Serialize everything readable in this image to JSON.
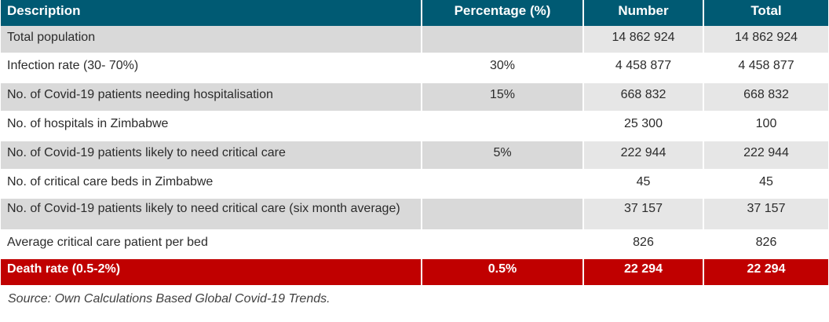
{
  "table": {
    "headers": [
      "Description",
      "Percentage (%)",
      "Number",
      "Total"
    ],
    "rows": [
      {
        "description": "Total population",
        "percentage": "",
        "number": "14 862 924",
        "total": "14 862 924"
      },
      {
        "description": "Infection rate (30- 70%)",
        "percentage": "30%",
        "number": "4 458 877",
        "total": "4 458 877"
      },
      {
        "description": "No. of Covid-19 patients needing hospitalisation",
        "percentage": "15%",
        "number": "668 832",
        "total": "668 832"
      },
      {
        "description": "No. of hospitals in Zimbabwe",
        "percentage": "",
        "number": "25 300",
        "total": "100"
      },
      {
        "description": "No. of Covid-19 patients likely to need critical care",
        "percentage": "5%",
        "number": "222 944",
        "total": "222 944"
      },
      {
        "description": "No. of critical care beds in Zimbabwe",
        "percentage": "",
        "number": "45",
        "total": "45"
      },
      {
        "description": "No. of Covid-19 patients likely to need critical care (six month average)",
        "percentage": "",
        "number": "37 157",
        "total": "37 157"
      },
      {
        "description": "Average critical care patient per bed",
        "percentage": "",
        "number": "826",
        "total": "826"
      },
      {
        "description": "Death rate (0.5-2%)",
        "percentage": "0.5%",
        "number": "22 294",
        "total": "22 294"
      }
    ]
  },
  "source_note": "Source: Own Calculations Based Global Covid-19 Trends.",
  "colors": {
    "header_bg": "#005a73",
    "shaded_row_bg": "#d9d9d9",
    "highlight_row_bg": "#c00000",
    "header_text": "#ffffff"
  }
}
